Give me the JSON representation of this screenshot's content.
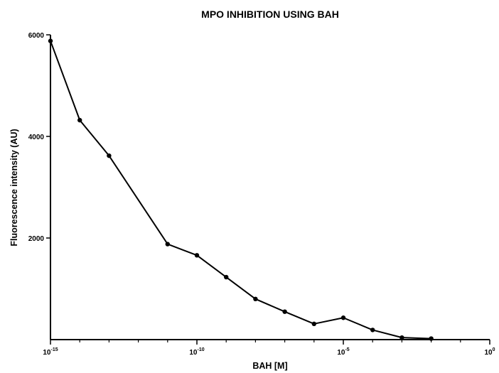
{
  "chart_data": {
    "type": "line",
    "title": "MPO INHIBITION USING BAH",
    "xlabel": "BAH [M]",
    "ylabel": "Fluorescence intensity (AU)",
    "x_scale": "log",
    "xlim": [
      1e-15,
      1
    ],
    "ylim": [
      0,
      6000
    ],
    "x_ticks": [
      {
        "base": "10",
        "exp": "-15",
        "value": 1e-15
      },
      {
        "base": "10",
        "exp": "-10",
        "value": 1e-10
      },
      {
        "base": "10",
        "exp": "-5",
        "value": 1e-05
      },
      {
        "base": "10",
        "exp": "0",
        "value": 1
      }
    ],
    "y_ticks": [
      {
        "label": "2000",
        "value": 2000
      },
      {
        "label": "4000",
        "value": 4000
      },
      {
        "label": "6000",
        "value": 6000
      }
    ],
    "grid": false,
    "series": [
      {
        "x": [
          1e-15,
          1e-14,
          1e-13,
          1e-11,
          1e-10,
          1e-09,
          1e-08,
          1e-07,
          1e-06,
          1e-05,
          0.0001,
          0.001,
          0.01
        ],
        "y": [
          5880,
          4320,
          3620,
          1880,
          1660,
          1230,
          800,
          550,
          310,
          430,
          190,
          40,
          20
        ]
      }
    ]
  }
}
